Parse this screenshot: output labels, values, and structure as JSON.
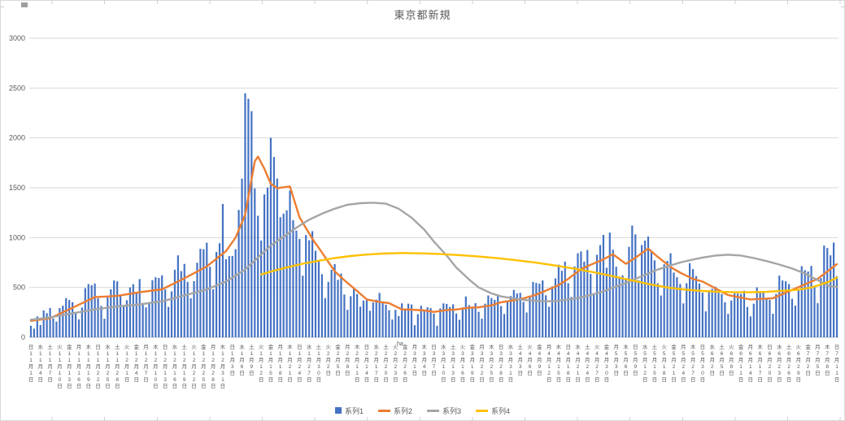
{
  "chart_data": {
    "type": "bar",
    "combo": "daily bars with 3 overlay lines",
    "title": "東京都新規",
    "ylim": [
      0,
      3000
    ],
    "yticks": [
      0,
      500,
      1000,
      1500,
      2000,
      2500,
      3000
    ],
    "grid": true,
    "legend_position": "bottom",
    "stray_text": "ha",
    "x_axis": {
      "unit": "day",
      "months": [
        {
          "month": 11,
          "days": 30
        },
        {
          "month": 12,
          "days": 31
        },
        {
          "month": 1,
          "days": 31
        },
        {
          "month": 2,
          "days": 28
        },
        {
          "month": 3,
          "days": 31
        },
        {
          "month": 4,
          "days": 30
        },
        {
          "month": 5,
          "days": 31
        },
        {
          "month": 6,
          "days": 30
        },
        {
          "month": 7,
          "days": 11
        }
      ],
      "weekday_cycle": [
        "日",
        "月",
        "火",
        "水",
        "木",
        "金",
        "土"
      ],
      "tick_interval_days": 3,
      "label_format": "{weekday}{month}月{day}日 written vertically"
    },
    "series": [
      {
        "name": "系列1",
        "type": "bar",
        "color": "#4472C4",
        "values": [
          116,
          87,
          209,
          122,
          269,
          242,
          294,
          189,
          157,
          293,
          317,
          393,
          374,
          352,
          255,
          180,
          298,
          493,
          534,
          522,
          539,
          391,
          314,
          186,
          401,
          481,
          570,
          561,
          418,
          311,
          372,
          500,
          533,
          449,
          584,
          327,
          299,
          352,
          572,
          602,
          595,
          621,
          480,
          305,
          460,
          678,
          822,
          664,
          736,
          556,
          392,
          563,
          748,
          888,
          884,
          949,
          708,
          481,
          856,
          944,
          1337,
          783,
          814,
          816,
          884,
          1278,
          1591,
          2447,
          2392,
          2268,
          1494,
          1219,
          970,
          1433,
          1502,
          2001,
          1809,
          1592,
          1204,
          1240,
          1274,
          1471,
          1175,
          1070,
          986,
          618,
          1026,
          973,
          1064,
          868,
          769,
          633,
          393,
          556,
          676,
          734,
          577,
          639,
          429,
          276,
          412,
          491,
          434,
          307,
          369,
          371,
          266,
          350,
          378,
          445,
          353,
          327,
          272,
          178,
          275,
          213,
          340,
          270,
          337,
          329,
          121,
          232,
          316,
          279,
          301,
          293,
          237,
          116,
          290,
          340,
          335,
          304,
          330,
          239,
          175,
          300,
          409,
          323,
          303,
          342,
          256,
          187,
          337,
          420,
          394,
          376,
          430,
          313,
          234,
          364,
          414,
          475,
          440,
          446,
          355,
          249,
          399,
          555,
          545,
          537,
          570,
          421,
          306,
          510,
          591,
          729,
          667,
          759,
          543,
          405,
          711,
          843,
          861,
          759,
          876,
          635,
          425,
          828,
          925,
          1027,
          698,
          1050,
          879,
          708,
          609,
          621,
          591,
          907,
          1121,
          1032,
          573,
          925,
          969,
          1010,
          854,
          772,
          542,
          419,
          732,
          766,
          843,
          649,
          602,
          535,
          340,
          542,
          743,
          684,
          614,
          539,
          448,
          260,
          471,
          487,
          508,
          472,
          436,
          351,
          235,
          369,
          440,
          439,
          435,
          467,
          304,
          209,
          337,
          501,
          452,
          453,
          388,
          376,
          236,
          435,
          619,
          570,
          562,
          534,
          386,
          317,
          476,
          714,
          673,
          660,
          716,
          518,
          342,
          593,
          920,
          896,
          822,
          950,
          614
        ]
      },
      {
        "name": "系列2",
        "type": "line",
        "color": "#ED7D31",
        "points": [
          [
            0,
            165
          ],
          [
            3,
            178
          ],
          [
            6,
            191
          ],
          [
            13,
            296
          ],
          [
            20,
            403
          ],
          [
            27,
            415
          ],
          [
            34,
            452
          ],
          [
            41,
            481
          ],
          [
            48,
            592
          ],
          [
            55,
            711
          ],
          [
            61,
            865
          ],
          [
            64,
            1000
          ],
          [
            67,
            1230
          ],
          [
            70,
            1765
          ],
          [
            71,
            1813
          ],
          [
            73,
            1690
          ],
          [
            75,
            1540
          ],
          [
            77,
            1495
          ],
          [
            79,
            1505
          ],
          [
            81,
            1513
          ],
          [
            84,
            1203
          ],
          [
            88,
            987
          ],
          [
            91,
            850
          ],
          [
            95,
            661
          ],
          [
            98,
            572
          ],
          [
            102,
            465
          ],
          [
            105,
            380
          ],
          [
            109,
            355
          ],
          [
            112,
            342
          ],
          [
            116,
            280
          ],
          [
            119,
            277
          ],
          [
            123,
            269
          ],
          [
            126,
            254
          ],
          [
            130,
            273
          ],
          [
            133,
            279
          ],
          [
            137,
            297
          ],
          [
            140,
            301
          ],
          [
            144,
            320
          ],
          [
            147,
            351
          ],
          [
            151,
            372
          ],
          [
            154,
            390
          ],
          [
            158,
            427
          ],
          [
            161,
            468
          ],
          [
            165,
            523
          ],
          [
            168,
            586
          ],
          [
            172,
            684
          ],
          [
            175,
            727
          ],
          [
            179,
            782
          ],
          [
            182,
            833
          ],
          [
            186,
            737
          ],
          [
            189,
            798
          ],
          [
            193,
            890
          ],
          [
            196,
            806
          ],
          [
            200,
            704
          ],
          [
            203,
            649
          ],
          [
            207,
            585
          ],
          [
            210,
            559
          ],
          [
            218,
            423
          ],
          [
            225,
            380
          ],
          [
            232,
            392
          ],
          [
            239,
            489
          ],
          [
            246,
            586
          ],
          [
            252,
            734
          ]
        ]
      },
      {
        "name": "系列3",
        "type": "line",
        "color": "#A5A5A5",
        "points": [
          [
            0,
            175
          ],
          [
            6,
            200
          ],
          [
            13,
            240
          ],
          [
            20,
            280
          ],
          [
            27,
            310
          ],
          [
            34,
            330
          ],
          [
            41,
            360
          ],
          [
            48,
            420
          ],
          [
            55,
            480
          ],
          [
            61,
            560
          ],
          [
            67,
            680
          ],
          [
            71,
            800
          ],
          [
            75,
            920
          ],
          [
            79,
            1010
          ],
          [
            83,
            1100
          ],
          [
            87,
            1180
          ],
          [
            91,
            1240
          ],
          [
            95,
            1290
          ],
          [
            99,
            1330
          ],
          [
            103,
            1345
          ],
          [
            107,
            1350
          ],
          [
            111,
            1340
          ],
          [
            115,
            1290
          ],
          [
            119,
            1200
          ],
          [
            123,
            1080
          ],
          [
            126,
            960
          ],
          [
            130,
            820
          ],
          [
            133,
            700
          ],
          [
            137,
            580
          ],
          [
            140,
            500
          ],
          [
            144,
            440
          ],
          [
            147,
            410
          ],
          [
            151,
            390
          ],
          [
            154,
            375
          ],
          [
            158,
            365
          ],
          [
            161,
            360
          ],
          [
            165,
            365
          ],
          [
            168,
            380
          ],
          [
            172,
            400
          ],
          [
            175,
            425
          ],
          [
            179,
            460
          ],
          [
            182,
            500
          ],
          [
            186,
            545
          ],
          [
            189,
            585
          ],
          [
            193,
            640
          ],
          [
            196,
            680
          ],
          [
            200,
            720
          ],
          [
            203,
            750
          ],
          [
            207,
            780
          ],
          [
            210,
            800
          ],
          [
            214,
            820
          ],
          [
            218,
            828
          ],
          [
            222,
            820
          ],
          [
            226,
            795
          ],
          [
            230,
            765
          ],
          [
            234,
            730
          ],
          [
            238,
            690
          ],
          [
            242,
            640
          ],
          [
            245,
            590
          ],
          [
            248,
            540
          ],
          [
            250,
            510
          ],
          [
            252,
            505
          ]
        ]
      },
      {
        "name": "系列4",
        "type": "line",
        "color": "#FFC000",
        "points": [
          [
            72,
            630
          ],
          [
            76,
            668
          ],
          [
            80,
            700
          ],
          [
            85,
            738
          ],
          [
            90,
            768
          ],
          [
            95,
            795
          ],
          [
            100,
            815
          ],
          [
            105,
            830
          ],
          [
            110,
            840
          ],
          [
            116,
            845
          ],
          [
            122,
            842
          ],
          [
            128,
            835
          ],
          [
            134,
            824
          ],
          [
            140,
            810
          ],
          [
            146,
            793
          ],
          [
            152,
            772
          ],
          [
            158,
            748
          ],
          [
            164,
            720
          ],
          [
            170,
            688
          ],
          [
            176,
            652
          ],
          [
            182,
            612
          ],
          [
            188,
            570
          ],
          [
            194,
            528
          ],
          [
            200,
            495
          ],
          [
            205,
            477
          ],
          [
            210,
            465
          ],
          [
            215,
            457
          ],
          [
            220,
            452
          ],
          [
            225,
            452
          ],
          [
            230,
            456
          ],
          [
            235,
            466
          ],
          [
            240,
            478
          ],
          [
            244,
            500
          ],
          [
            247,
            530
          ],
          [
            250,
            565
          ],
          [
            252,
            600
          ]
        ]
      }
    ]
  }
}
